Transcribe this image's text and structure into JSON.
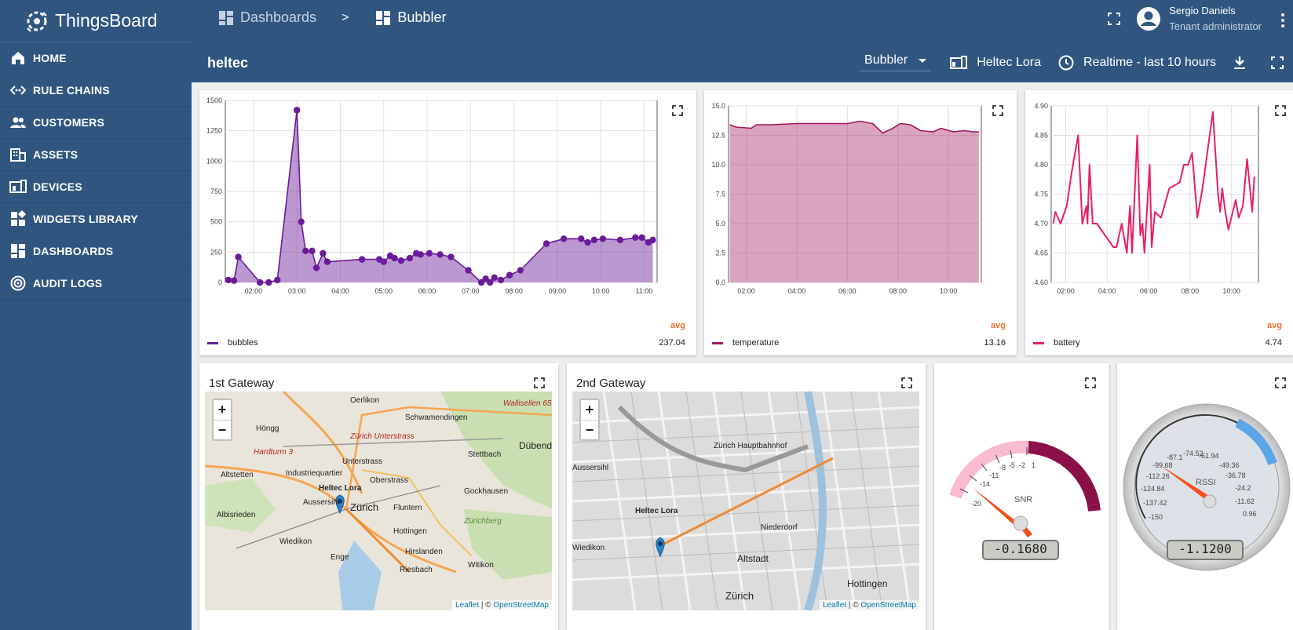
{
  "app": {
    "name": "ThingsBoard"
  },
  "sidebar": {
    "items": [
      {
        "label": "HOME",
        "icon": "home-icon"
      },
      {
        "label": "RULE CHAINS",
        "icon": "rule-chains-icon"
      },
      {
        "label": "CUSTOMERS",
        "icon": "customers-icon"
      },
      {
        "label": "ASSETS",
        "icon": "assets-icon"
      },
      {
        "label": "DEVICES",
        "icon": "devices-icon"
      },
      {
        "label": "WIDGETS LIBRARY",
        "icon": "widgets-icon"
      },
      {
        "label": "DASHBOARDS",
        "icon": "dashboards-icon"
      },
      {
        "label": "AUDIT LOGS",
        "icon": "audit-logs-icon"
      }
    ]
  },
  "header": {
    "breadcrumb": [
      {
        "label": "Dashboards"
      },
      {
        "label": "Bubbler"
      }
    ],
    "separator": ">",
    "user": {
      "name": "Sergio Daniels",
      "role": "Tenant administrator"
    }
  },
  "subbar": {
    "title": "heltec",
    "state_select": "Bubbler",
    "entity": "Heltec Lora",
    "timewindow": "Realtime - last 10 hours"
  },
  "colors": {
    "primary": "#305680",
    "bubbles": "#6a1b9a",
    "temperature": "#a3185c",
    "battery": "#e91e63",
    "avg": "#f26e2e"
  },
  "widgets": {
    "bubbles": {
      "legend_avg_header": "avg",
      "series_name": "bubbles",
      "avg": "237.04"
    },
    "temperature": {
      "legend_avg_header": "avg",
      "series_name": "temperature",
      "avg": "13.16"
    },
    "battery": {
      "legend_avg_header": "avg",
      "series_name": "battery",
      "avg": "4.74"
    },
    "gateway1": {
      "title": "1st Gateway",
      "zoom_in": "+",
      "zoom_out": "−",
      "marker_label": "Heltec Lora",
      "attrib_leaflet": "Leaflet",
      "attrib_sep": " | © ",
      "attrib_osm": "OpenStreetMap",
      "places": [
        "Oerlikon",
        "Schwamendingen",
        "Höngg",
        "Wallisellen 65",
        "Zürich Unterstrass",
        "Stettbach",
        "Dübendorf",
        "Hardturm 3",
        "Unterstrass",
        "Altstetten",
        "Industriequartier",
        "Oberstrass",
        "Gockhausen",
        "Aussersihl",
        "Zürich",
        "Fluntern",
        "Albisrieden",
        "Zürichberg",
        "Hottingen",
        "Wiedikon",
        "Enge",
        "Hirslanden",
        "Witikon",
        "Riesbach"
      ]
    },
    "gateway2": {
      "title": "2nd Gateway",
      "zoom_in": "+",
      "zoom_out": "−",
      "marker_label": "Heltec Lora",
      "attrib_leaflet": "Leaflet",
      "attrib_sep": " | © ",
      "attrib_osm": "OpenStreetMap",
      "places": [
        "Zürich Hauptbahnhof",
        "Niederdorf",
        "Altstadt",
        "Hottingen",
        "Zürich",
        "Wiedikon",
        "Aussersihl"
      ]
    },
    "snr": {
      "label": "SNR",
      "value": "-0.1680",
      "ticks": [
        "-20",
        "-14",
        "-11",
        "-8",
        "-5",
        "-2",
        "1"
      ]
    },
    "rssi": {
      "label": "RSSI",
      "value": "-1.1200",
      "ticks": [
        "-150",
        "-137.42",
        "-124.84",
        "-112.26",
        "-99.68",
        "-87.1",
        "-74.52",
        "-61.94",
        "-49.36",
        "-36.78",
        "-24.2",
        "-11.62",
        "0.96"
      ]
    }
  },
  "chart_data": [
    {
      "type": "area",
      "series": [
        {
          "name": "bubbles",
          "color": "#6a1b9a"
        }
      ],
      "x_ticks": [
        "02:00",
        "03:00",
        "04:00",
        "05:00",
        "06:00",
        "07:00",
        "08:00",
        "09:00",
        "10:00",
        "11:00"
      ],
      "y_ticks": [
        "0",
        "250",
        "500",
        "750",
        "1000",
        "1250",
        "1500"
      ],
      "ylim": [
        0,
        1500
      ],
      "xlim": [
        1.35,
        11.3
      ],
      "grid": true,
      "points": [
        [
          1.42,
          20
        ],
        [
          1.55,
          15
        ],
        [
          1.65,
          210
        ],
        [
          2.15,
          0
        ],
        [
          2.35,
          0
        ],
        [
          2.55,
          20
        ],
        [
          3.0,
          1420
        ],
        [
          3.1,
          500
        ],
        [
          3.2,
          260
        ],
        [
          3.35,
          260
        ],
        [
          3.45,
          120
        ],
        [
          3.6,
          240
        ],
        [
          3.7,
          170
        ],
        [
          4.5,
          190
        ],
        [
          4.9,
          190
        ],
        [
          5.0,
          170
        ],
        [
          5.15,
          220
        ],
        [
          5.25,
          200
        ],
        [
          5.4,
          180
        ],
        [
          5.6,
          200
        ],
        [
          5.75,
          240
        ],
        [
          5.85,
          230
        ],
        [
          6.05,
          240
        ],
        [
          6.3,
          230
        ],
        [
          6.55,
          210
        ],
        [
          6.95,
          100
        ],
        [
          7.25,
          0
        ],
        [
          7.35,
          30
        ],
        [
          7.45,
          0
        ],
        [
          7.55,
          40
        ],
        [
          7.7,
          20
        ],
        [
          7.9,
          60
        ],
        [
          8.15,
          100
        ],
        [
          8.75,
          320
        ],
        [
          9.15,
          360
        ],
        [
          9.55,
          360
        ],
        [
          9.7,
          330
        ],
        [
          9.85,
          350
        ],
        [
          10.05,
          360
        ],
        [
          10.45,
          350
        ],
        [
          10.8,
          370
        ],
        [
          10.95,
          370
        ],
        [
          11.1,
          330
        ],
        [
          11.2,
          350
        ]
      ]
    },
    {
      "type": "area",
      "series": [
        {
          "name": "temperature",
          "color": "#a3185c"
        }
      ],
      "x_ticks": [
        "02:00",
        "04:00",
        "06:00",
        "08:00",
        "10:00"
      ],
      "y_ticks": [
        "0.0",
        "2.5",
        "5.0",
        "7.5",
        "10.0",
        "12.5",
        "15.0"
      ],
      "ylim": [
        0,
        15
      ],
      "xlim": [
        1.3,
        11.3
      ],
      "grid": true,
      "points": [
        [
          1.35,
          13.4
        ],
        [
          1.6,
          13.2
        ],
        [
          2.2,
          13.1
        ],
        [
          2.4,
          13.4
        ],
        [
          3.0,
          13.4
        ],
        [
          4.0,
          13.5
        ],
        [
          5.0,
          13.5
        ],
        [
          6.0,
          13.5
        ],
        [
          6.5,
          13.7
        ],
        [
          7.0,
          13.5
        ],
        [
          7.4,
          12.7
        ],
        [
          7.8,
          13.1
        ],
        [
          8.1,
          13.5
        ],
        [
          8.5,
          13.4
        ],
        [
          8.9,
          12.9
        ],
        [
          9.4,
          12.8
        ],
        [
          9.7,
          13.1
        ],
        [
          10.2,
          12.8
        ],
        [
          10.6,
          12.9
        ],
        [
          11.0,
          12.8
        ],
        [
          11.2,
          12.8
        ]
      ]
    },
    {
      "type": "line",
      "series": [
        {
          "name": "battery",
          "color": "#e91e63"
        }
      ],
      "x_ticks": [
        "02:00",
        "04:00",
        "06:00",
        "08:00",
        "10:00"
      ],
      "y_ticks": [
        "4.60",
        "4.65",
        "4.70",
        "4.75",
        "4.80",
        "4.85",
        "4.90"
      ],
      "ylim": [
        4.6,
        4.9
      ],
      "xlim": [
        1.3,
        11.3
      ],
      "grid": true,
      "points": [
        [
          1.4,
          4.7
        ],
        [
          1.5,
          4.72
        ],
        [
          1.75,
          4.7
        ],
        [
          2.05,
          4.73
        ],
        [
          2.3,
          4.79
        ],
        [
          2.6,
          4.85
        ],
        [
          2.8,
          4.7
        ],
        [
          3.0,
          4.73
        ],
        [
          3.05,
          4.7
        ],
        [
          3.15,
          4.8
        ],
        [
          3.3,
          4.7
        ],
        [
          3.5,
          4.7
        ],
        [
          3.9,
          4.68
        ],
        [
          4.3,
          4.66
        ],
        [
          4.45,
          4.66
        ],
        [
          4.7,
          4.7
        ],
        [
          4.95,
          4.65
        ],
        [
          5.1,
          4.73
        ],
        [
          5.2,
          4.65
        ],
        [
          5.45,
          4.85
        ],
        [
          5.6,
          4.68
        ],
        [
          5.7,
          4.7
        ],
        [
          5.8,
          4.65
        ],
        [
          6.05,
          4.8
        ],
        [
          6.15,
          4.66
        ],
        [
          6.3,
          4.72
        ],
        [
          6.6,
          4.71
        ],
        [
          7.0,
          4.76
        ],
        [
          7.5,
          4.77
        ],
        [
          7.7,
          4.8
        ],
        [
          7.9,
          4.8
        ],
        [
          8.1,
          4.82
        ],
        [
          8.35,
          4.71
        ],
        [
          8.6,
          4.76
        ],
        [
          9.1,
          4.89
        ],
        [
          9.35,
          4.75
        ],
        [
          9.45,
          4.72
        ],
        [
          9.55,
          4.76
        ],
        [
          9.7,
          4.72
        ],
        [
          9.85,
          4.69
        ],
        [
          10.2,
          4.74
        ],
        [
          10.35,
          4.71
        ],
        [
          10.55,
          4.73
        ],
        [
          10.75,
          4.81
        ],
        [
          11.0,
          4.72
        ],
        [
          11.1,
          4.78
        ]
      ]
    }
  ]
}
